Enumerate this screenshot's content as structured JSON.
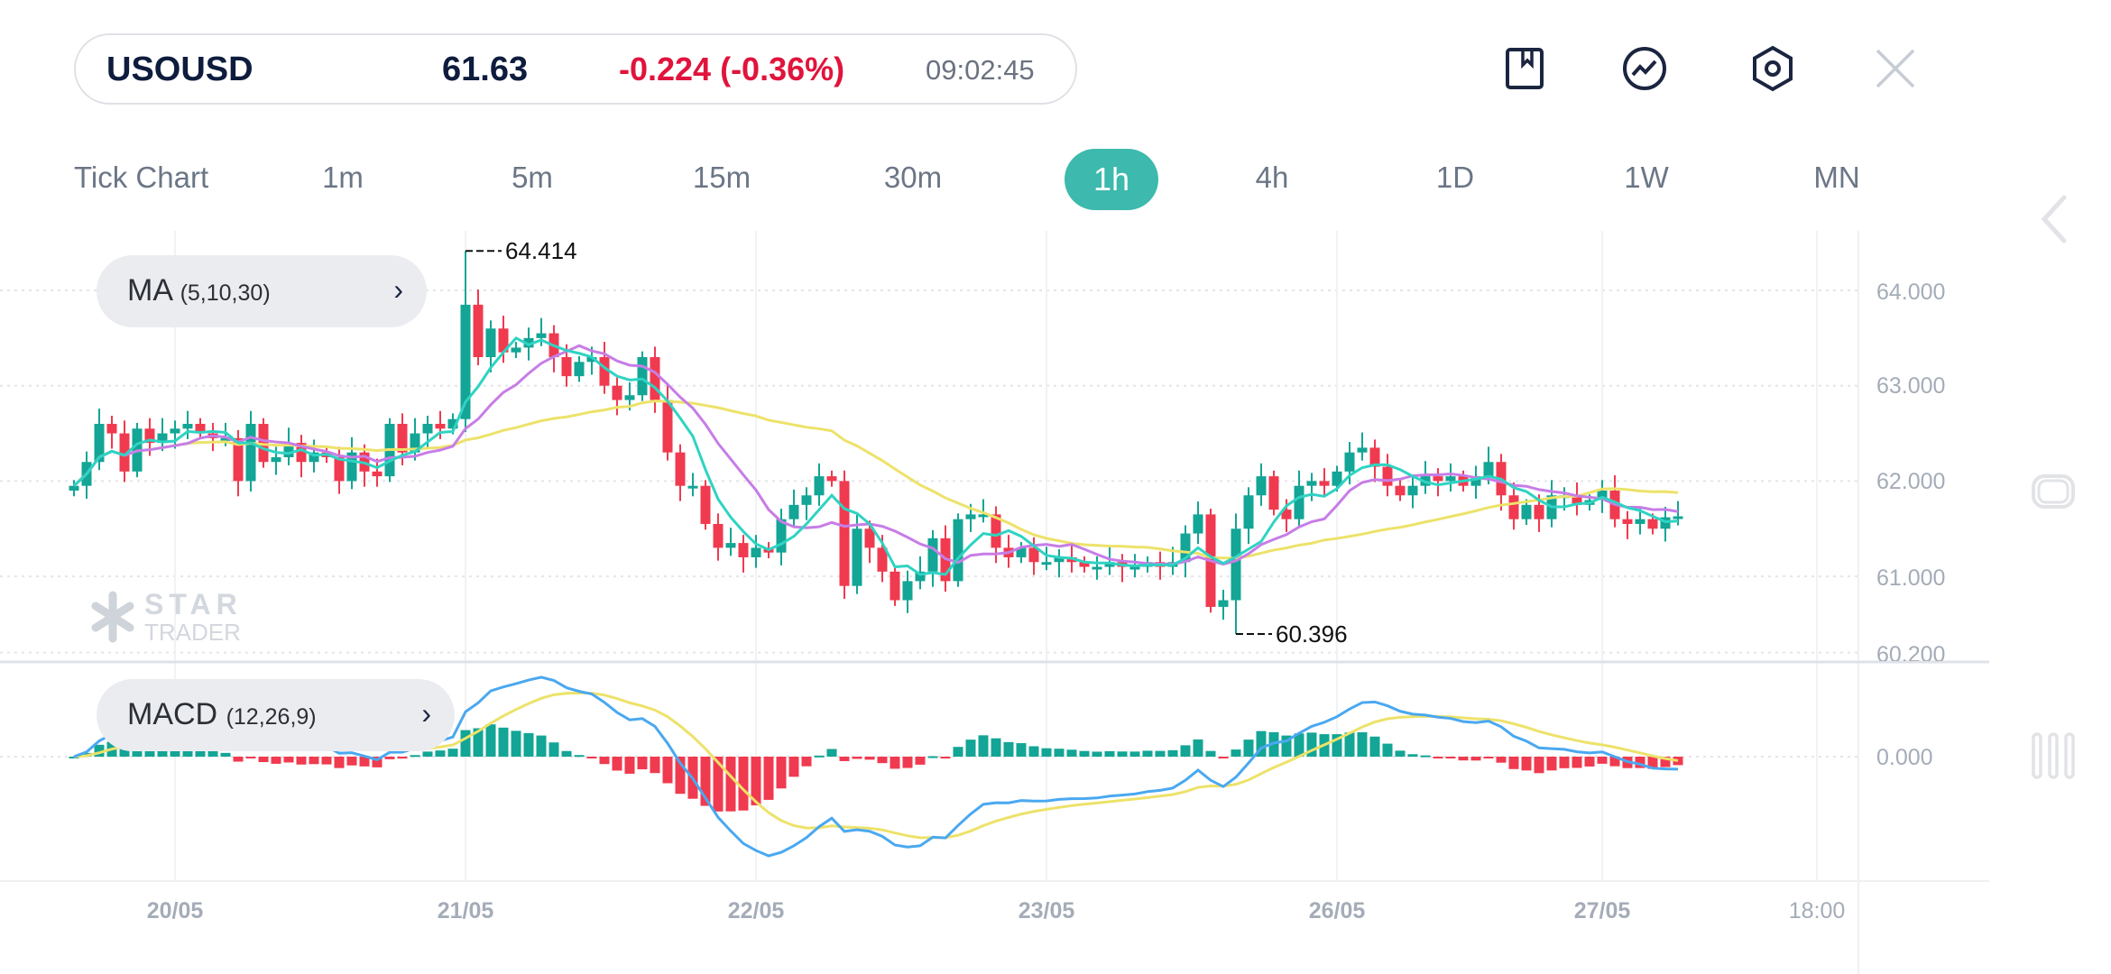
{
  "header": {
    "symbol": "USOUSD",
    "price": "61.63",
    "change": "-0.224 (-0.36%)",
    "time": "09:02:45",
    "icons": [
      "bookmark-icon",
      "trend-line-icon",
      "settings-hex-icon",
      "close-icon"
    ]
  },
  "timeframes": {
    "items": [
      "Tick Chart",
      "1m",
      "5m",
      "15m",
      "30m",
      "1h",
      "4h",
      "1D",
      "1W",
      "MN"
    ],
    "active": "1h"
  },
  "indicators": {
    "ma": {
      "name": "MA",
      "params": "(5,10,30)"
    },
    "macd": {
      "name": "MACD",
      "params": "(12,26,9)"
    }
  },
  "watermark": {
    "line1": "STAR",
    "line2": "TRADER"
  },
  "colors": {
    "up": "#13a595",
    "down": "#f03a4f",
    "ma5": "#2fd3c3",
    "ma10": "#c77de6",
    "ma30": "#ede26a",
    "macd": "#4aa8f0",
    "signal": "#ede26a",
    "accent": "#3db9ad"
  },
  "chart_data": {
    "type": "candlestick",
    "price_axis": {
      "ticks": [
        "64.000",
        "63.000",
        "62.000",
        "61.000",
        "60.200"
      ],
      "range": [
        60.2,
        64.4
      ]
    },
    "macd_axis": {
      "ticks": [
        "0.000"
      ]
    },
    "x_ticks": [
      {
        "label": "20/05",
        "index": 8
      },
      {
        "label": "21/05",
        "index": 31
      },
      {
        "label": "22/05",
        "index": 54
      },
      {
        "label": "23/05",
        "index": 77
      },
      {
        "label": "26/05",
        "index": 100
      },
      {
        "label": "27/05",
        "index": 121
      },
      {
        "label": "18:00",
        "index": 138
      }
    ],
    "first_open": 61.9,
    "closes": [
      61.95,
      62.2,
      62.6,
      62.5,
      62.1,
      62.55,
      62.4,
      62.5,
      62.55,
      62.6,
      62.5,
      62.45,
      62.45,
      62.0,
      62.6,
      62.2,
      62.25,
      62.4,
      62.2,
      62.3,
      62.25,
      62.0,
      62.3,
      62.1,
      62.05,
      62.6,
      62.3,
      62.5,
      62.6,
      62.55,
      62.65,
      63.85,
      63.3,
      63.6,
      63.35,
      63.4,
      63.5,
      63.55,
      63.3,
      63.1,
      63.25,
      63.3,
      63.0,
      62.85,
      62.9,
      63.3,
      62.85,
      62.3,
      61.95,
      61.95,
      61.55,
      61.3,
      61.35,
      61.2,
      61.3,
      61.25,
      61.6,
      61.75,
      61.85,
      62.05,
      62.0,
      60.9,
      61.5,
      61.3,
      61.05,
      60.75,
      60.95,
      61.05,
      61.4,
      60.95,
      61.6,
      61.65,
      61.65,
      61.3,
      61.2,
      61.3,
      61.15,
      61.15,
      61.2,
      61.15,
      61.1,
      61.1,
      61.15,
      61.1,
      61.1,
      61.15,
      61.1,
      61.15,
      61.45,
      61.65,
      60.68,
      60.75,
      61.5,
      61.85,
      62.05,
      61.7,
      61.6,
      61.95,
      62.0,
      61.95,
      62.1,
      62.3,
      62.35,
      62.15,
      61.95,
      61.85,
      61.95,
      62.05,
      62.0,
      62.05,
      61.95,
      62.05,
      62.2,
      61.85,
      61.6,
      61.75,
      61.6,
      61.85,
      61.85,
      61.75,
      61.8,
      61.9,
      61.6,
      61.55,
      61.6,
      61.5,
      61.62,
      61.63
    ],
    "marked_high": {
      "value": 64.414,
      "label": "64.414",
      "index": 31
    },
    "marked_low": {
      "value": 60.396,
      "label": "60.396",
      "index": 92
    },
    "ma_periods": [
      5,
      10,
      30
    ],
    "macd_params": [
      12,
      26,
      9
    ]
  }
}
